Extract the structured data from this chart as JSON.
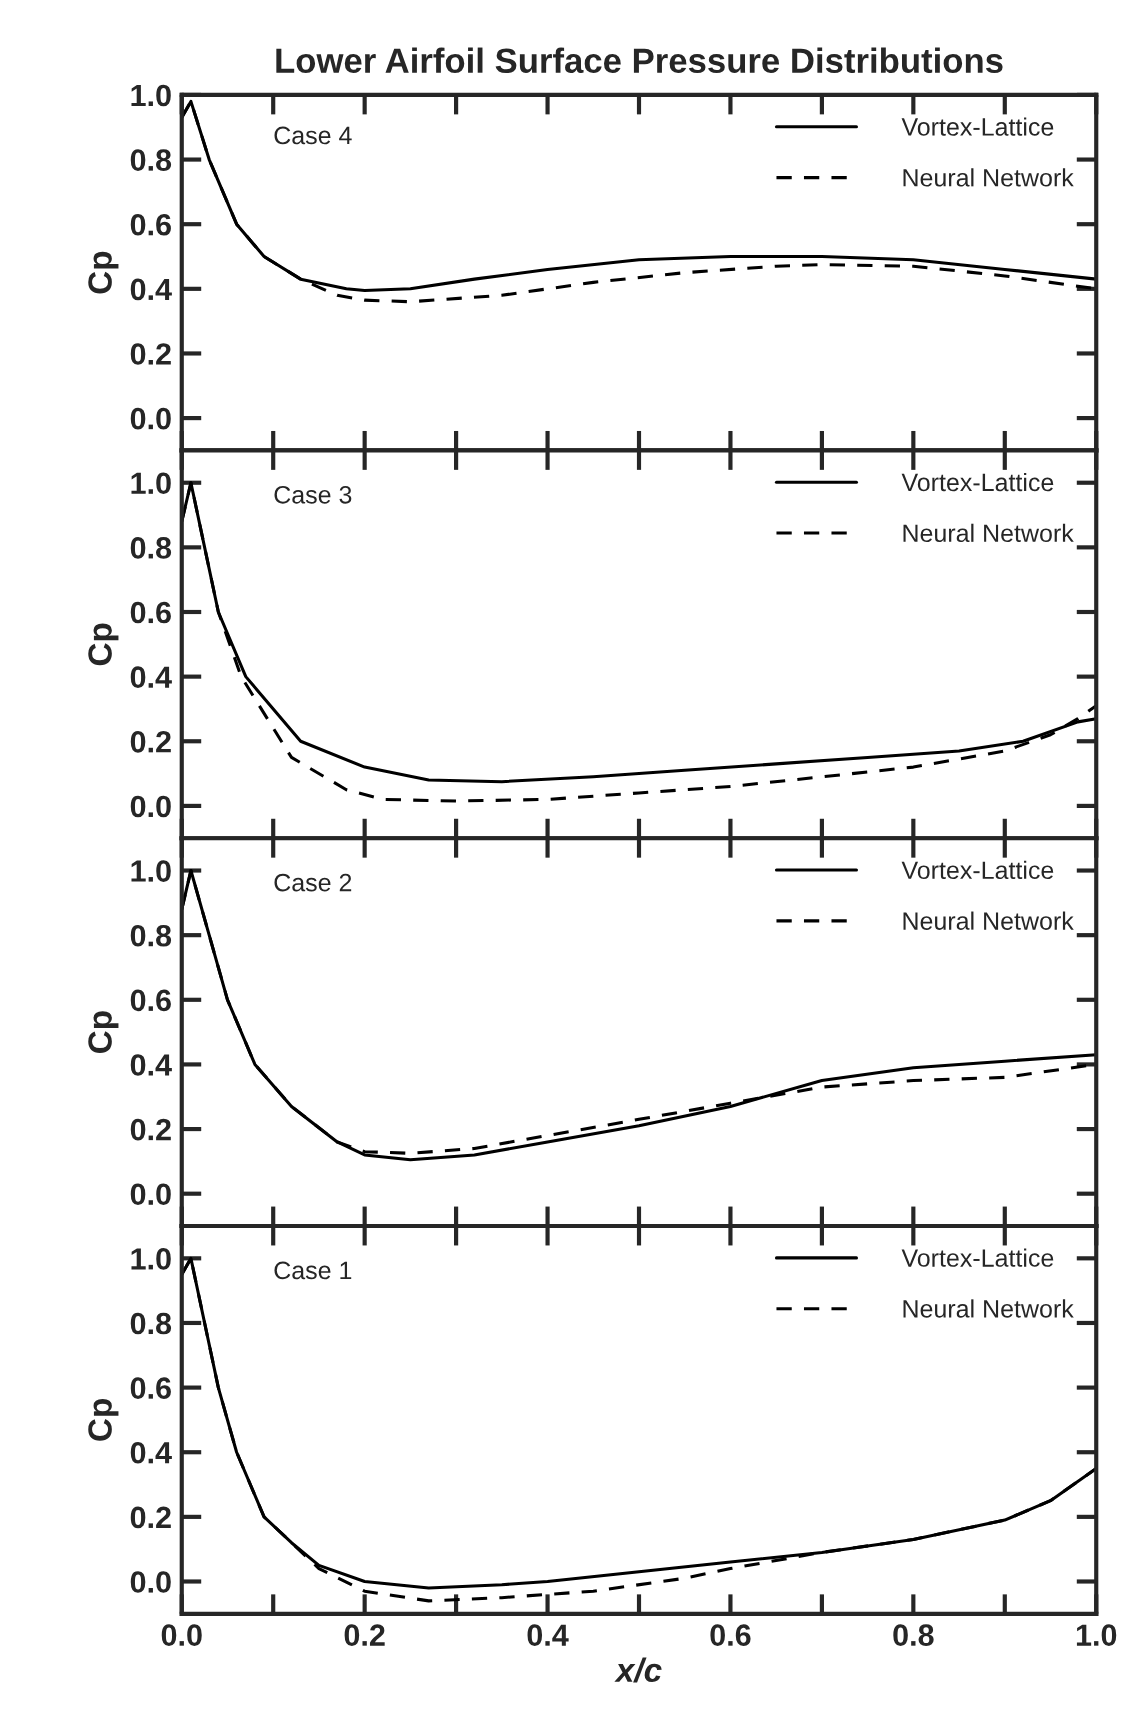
{
  "chart_data": [
    {
      "type": "line",
      "title": "Lower Airfoil Surface Pressure Distributions",
      "ylabel": "Cp",
      "annotations": [
        "Case 4"
      ],
      "legend": "top right",
      "tick_labels": "y",
      "xlim": [
        0,
        1
      ],
      "ylim": [
        -0.1,
        1.0
      ],
      "xticks": [
        {
          "value": 0,
          "label": null
        },
        {
          "value": 0.1,
          "label": null
        },
        {
          "value": 0.2,
          "label": null
        },
        {
          "value": 0.3,
          "label": null
        },
        {
          "value": 0.4,
          "label": null
        },
        {
          "value": 0.5,
          "label": null
        },
        {
          "value": 0.6,
          "label": null
        },
        {
          "value": 0.7,
          "label": null
        },
        {
          "value": 0.8,
          "label": null
        },
        {
          "value": 0.9,
          "label": null
        },
        {
          "value": 1,
          "label": null
        }
      ],
      "yticks": [
        {
          "value": 0,
          "label": "0.0"
        },
        {
          "value": 0.2,
          "label": "0.2"
        },
        {
          "value": 0.4,
          "label": "0.4"
        },
        {
          "value": 0.6,
          "label": "0.6"
        },
        {
          "value": 0.8,
          "label": "0.8"
        },
        {
          "value": 1.0,
          "label": "1.0"
        }
      ],
      "series": [
        {
          "name": "Vortex-Lattice",
          "color": "#000000",
          "line_style": "solid",
          "x": [
            0,
            0.01,
            0.03,
            0.06,
            0.09,
            0.13,
            0.18,
            0.2,
            0.25,
            0.32,
            0.4,
            0.5,
            0.6,
            0.7,
            0.8,
            0.9,
            1.0
          ],
          "values": [
            0.93,
            0.98,
            0.8,
            0.6,
            0.5,
            0.43,
            0.4,
            0.395,
            0.4,
            0.43,
            0.46,
            0.49,
            0.5,
            0.5,
            0.49,
            0.46,
            0.43
          ]
        },
        {
          "name": "Neural Network",
          "color": "#000000",
          "line_style": "dashed",
          "x": [
            0,
            0.01,
            0.03,
            0.06,
            0.09,
            0.13,
            0.17,
            0.2,
            0.25,
            0.35,
            0.45,
            0.55,
            0.65,
            0.7,
            0.8,
            0.9,
            1.0
          ],
          "values": [
            0.93,
            0.98,
            0.8,
            0.6,
            0.5,
            0.43,
            0.38,
            0.365,
            0.36,
            0.38,
            0.42,
            0.45,
            0.47,
            0.475,
            0.47,
            0.44,
            0.4
          ]
        }
      ]
    },
    {
      "type": "line",
      "ylabel": "Cp",
      "annotations": [
        "Case 3"
      ],
      "legend": "top right",
      "tick_labels": "y",
      "xlim": [
        0,
        1
      ],
      "ylim": [
        -0.1,
        1.1
      ],
      "xticks": [
        {
          "value": 0,
          "label": null
        },
        {
          "value": 0.1,
          "label": null
        },
        {
          "value": 0.2,
          "label": null
        },
        {
          "value": 0.3,
          "label": null
        },
        {
          "value": 0.4,
          "label": null
        },
        {
          "value": 0.5,
          "label": null
        },
        {
          "value": 0.6,
          "label": null
        },
        {
          "value": 0.7,
          "label": null
        },
        {
          "value": 0.8,
          "label": null
        },
        {
          "value": 0.9,
          "label": null
        },
        {
          "value": 1,
          "label": null
        }
      ],
      "yticks": [
        {
          "value": 0,
          "label": "0.0"
        },
        {
          "value": 0.2,
          "label": "0.2"
        },
        {
          "value": 0.4,
          "label": "0.4"
        },
        {
          "value": 0.6,
          "label": "0.6"
        },
        {
          "value": 0.8,
          "label": "0.8"
        },
        {
          "value": 1.0,
          "label": "1.0"
        }
      ],
      "series": [
        {
          "name": "Vortex-Lattice",
          "color": "#000000",
          "line_style": "solid",
          "x": [
            0,
            0.01,
            0.025,
            0.04,
            0.07,
            0.13,
            0.2,
            0.27,
            0.35,
            0.45,
            0.55,
            0.65,
            0.75,
            0.85,
            0.92,
            0.98,
            1.0
          ],
          "values": [
            0.88,
            1.0,
            0.8,
            0.6,
            0.4,
            0.2,
            0.12,
            0.08,
            0.075,
            0.09,
            0.11,
            0.13,
            0.15,
            0.17,
            0.2,
            0.26,
            0.27
          ]
        },
        {
          "name": "Neural Network",
          "color": "#000000",
          "line_style": "dashed",
          "x": [
            0,
            0.01,
            0.025,
            0.04,
            0.065,
            0.12,
            0.18,
            0.22,
            0.3,
            0.4,
            0.5,
            0.6,
            0.7,
            0.8,
            0.9,
            0.95,
            0.98,
            1.0
          ],
          "values": [
            0.88,
            1.0,
            0.8,
            0.6,
            0.4,
            0.15,
            0.05,
            0.02,
            0.015,
            0.02,
            0.04,
            0.06,
            0.09,
            0.12,
            0.17,
            0.22,
            0.27,
            0.31
          ]
        }
      ]
    },
    {
      "type": "line",
      "ylabel": "Cp",
      "annotations": [
        "Case 2"
      ],
      "legend": "top right",
      "tick_labels": "y",
      "xlim": [
        0,
        1
      ],
      "ylim": [
        -0.1,
        1.1
      ],
      "xticks": [
        {
          "value": 0,
          "label": null
        },
        {
          "value": 0.1,
          "label": null
        },
        {
          "value": 0.2,
          "label": null
        },
        {
          "value": 0.3,
          "label": null
        },
        {
          "value": 0.4,
          "label": null
        },
        {
          "value": 0.5,
          "label": null
        },
        {
          "value": 0.6,
          "label": null
        },
        {
          "value": 0.7,
          "label": null
        },
        {
          "value": 0.8,
          "label": null
        },
        {
          "value": 0.9,
          "label": null
        },
        {
          "value": 1,
          "label": null
        }
      ],
      "yticks": [
        {
          "value": 0,
          "label": "0.0"
        },
        {
          "value": 0.2,
          "label": "0.2"
        },
        {
          "value": 0.4,
          "label": "0.4"
        },
        {
          "value": 0.6,
          "label": "0.6"
        },
        {
          "value": 0.8,
          "label": "0.8"
        },
        {
          "value": 1.0,
          "label": "1.0"
        }
      ],
      "series": [
        {
          "name": "Vortex-Lattice",
          "color": "#000000",
          "line_style": "solid",
          "x": [
            0,
            0.01,
            0.03,
            0.05,
            0.08,
            0.12,
            0.17,
            0.2,
            0.25,
            0.32,
            0.4,
            0.5,
            0.6,
            0.7,
            0.8,
            0.9,
            1.0
          ],
          "values": [
            0.88,
            1.0,
            0.8,
            0.6,
            0.4,
            0.27,
            0.16,
            0.12,
            0.105,
            0.12,
            0.16,
            0.21,
            0.27,
            0.35,
            0.39,
            0.41,
            0.43
          ]
        },
        {
          "name": "Neural Network",
          "color": "#000000",
          "line_style": "dashed",
          "x": [
            0,
            0.01,
            0.03,
            0.05,
            0.08,
            0.12,
            0.17,
            0.2,
            0.25,
            0.32,
            0.4,
            0.5,
            0.6,
            0.7,
            0.8,
            0.9,
            1.0
          ],
          "values": [
            0.88,
            1.0,
            0.8,
            0.6,
            0.4,
            0.27,
            0.16,
            0.13,
            0.125,
            0.14,
            0.18,
            0.23,
            0.28,
            0.33,
            0.35,
            0.36,
            0.4
          ]
        }
      ]
    },
    {
      "type": "line",
      "ylabel": "Cp",
      "xlabel": "x/c",
      "annotations": [
        "Case 1"
      ],
      "legend": "top right",
      "xlim": [
        0,
        1
      ],
      "ylim": [
        -0.1,
        1.1
      ],
      "xticks": [
        {
          "value": 0,
          "label": "0.0"
        },
        {
          "value": 0.1,
          "label": null
        },
        {
          "value": 0.2,
          "label": "0.2"
        },
        {
          "value": 0.3,
          "label": null
        },
        {
          "value": 0.4,
          "label": "0.4"
        },
        {
          "value": 0.5,
          "label": null
        },
        {
          "value": 0.6,
          "label": "0.6"
        },
        {
          "value": 0.7,
          "label": null
        },
        {
          "value": 0.8,
          "label": "0.8"
        },
        {
          "value": 0.9,
          "label": null
        },
        {
          "value": 1,
          "label": "1.0"
        }
      ],
      "yticks": [
        {
          "value": 0,
          "label": "0.0"
        },
        {
          "value": 0.2,
          "label": "0.2"
        },
        {
          "value": 0.4,
          "label": "0.4"
        },
        {
          "value": 0.6,
          "label": "0.6"
        },
        {
          "value": 0.8,
          "label": "0.8"
        },
        {
          "value": 1.0,
          "label": "1.0"
        }
      ],
      "series": [
        {
          "name": "Vortex-Lattice",
          "color": "#000000",
          "line_style": "solid",
          "x": [
            0,
            0.01,
            0.025,
            0.04,
            0.06,
            0.09,
            0.12,
            0.15,
            0.2,
            0.27,
            0.35,
            0.4,
            0.5,
            0.6,
            0.7,
            0.8,
            0.9,
            0.95,
            1.0
          ],
          "values": [
            0.95,
            1.0,
            0.8,
            0.6,
            0.4,
            0.2,
            0.12,
            0.05,
            0.0,
            -0.02,
            -0.01,
            0.0,
            0.03,
            0.06,
            0.09,
            0.13,
            0.19,
            0.25,
            0.35
          ]
        },
        {
          "name": "Neural Network",
          "color": "#000000",
          "line_style": "dashed",
          "x": [
            0,
            0.01,
            0.025,
            0.04,
            0.06,
            0.09,
            0.12,
            0.15,
            0.2,
            0.27,
            0.35,
            0.45,
            0.55,
            0.6,
            0.7,
            0.8,
            0.9,
            0.95,
            1.0
          ],
          "values": [
            0.95,
            1.0,
            0.8,
            0.6,
            0.4,
            0.2,
            0.12,
            0.04,
            -0.03,
            -0.06,
            -0.05,
            -0.03,
            0.01,
            0.04,
            0.09,
            0.13,
            0.19,
            0.25,
            0.35
          ]
        }
      ]
    }
  ]
}
